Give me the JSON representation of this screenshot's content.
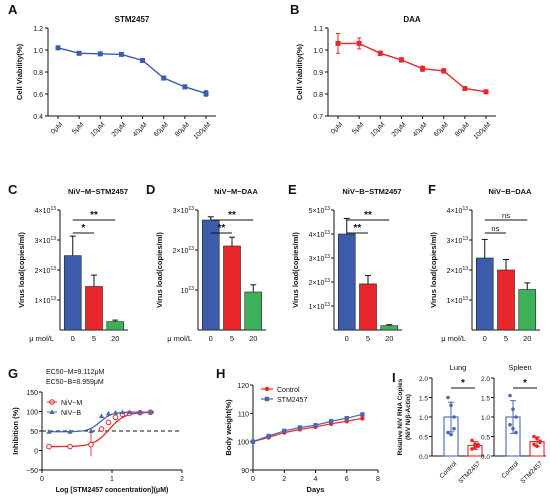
{
  "colors": {
    "blue": "#3b5bab",
    "red": "#e8262c",
    "green": "#3db05a",
    "slate": "#4a67b6",
    "black": "#111111"
  },
  "chart_data": [
    {
      "id": "A",
      "type": "line",
      "panel_letter": "A",
      "title": "STM2457",
      "xlabel": "",
      "ylabel": "Cell Viability(%)",
      "categories": [
        "0μM",
        "5μM",
        "10μM",
        "20μM",
        "40μM",
        "60μM",
        "80μM",
        "100μM"
      ],
      "series": [
        {
          "values": [
            1.02,
            0.97,
            0.965,
            0.96,
            0.905,
            0.745,
            0.665,
            0.605
          ],
          "errors": [
            0.015,
            0.008,
            0.01,
            0.012,
            0.015,
            0.01,
            0.01,
            0.025
          ]
        }
      ],
      "ylim": [
        0.4,
        1.2
      ],
      "yticks": [
        "0.4",
        "0.6",
        "0.8",
        "1.0",
        "1.2"
      ],
      "color": "#3b5bab"
    },
    {
      "id": "B",
      "type": "line",
      "panel_letter": "B",
      "title": "DAA",
      "xlabel": "",
      "ylabel": "Cell Viability(%)",
      "categories": [
        "0μM",
        "5μM",
        "10μM",
        "20μM",
        "40μM",
        "60μM",
        "80μM",
        "100μM"
      ],
      "series": [
        {
          "values": [
            1.03,
            1.03,
            0.985,
            0.955,
            0.915,
            0.905,
            0.825,
            0.81
          ],
          "errors": [
            0.045,
            0.025,
            0.01,
            0.01,
            0.012,
            0.01,
            0.008,
            0.008
          ]
        }
      ],
      "ylim": [
        0.7,
        1.1
      ],
      "yticks": [
        "0.7",
        "0.8",
        "0.9",
        "1.0",
        "1.1"
      ],
      "color": "#e8262c"
    },
    {
      "id": "C",
      "type": "bar",
      "panel_letter": "C",
      "title": "NiV−M−STM2457",
      "ylabel": "Virus load(copies/ml)",
      "xlabel_prefix": "μ mol/L",
      "categories": [
        "0",
        "5",
        "20"
      ],
      "values": [
        24800000000000.0,
        14500000000000.0,
        2800000000000.0
      ],
      "errors": [
        6500000000000.0,
        3800000000000.0,
        500000000000.0
      ],
      "ylim": [
        0,
        40000000000000.0
      ],
      "yticks": [
        {
          "v": 10000000000000.0,
          "base": "1×10",
          "exp": "13"
        },
        {
          "v": 20000000000000.0,
          "base": "2×10",
          "exp": "13"
        },
        {
          "v": 30000000000000.0,
          "base": "3×10",
          "exp": "13"
        },
        {
          "v": 40000000000000.0,
          "base": "4×10",
          "exp": "13"
        }
      ],
      "sig": [
        {
          "from": 0,
          "to": 1,
          "label": "*",
          "level": 0
        },
        {
          "from": 0,
          "to": 2,
          "label": "**",
          "level": 1
        }
      ]
    },
    {
      "id": "D",
      "type": "bar",
      "panel_letter": "D",
      "title": "NiV−M−DAA",
      "ylabel": "Virus load(copies/ml)",
      "xlabel_prefix": "μ mol/L",
      "categories": [
        "0",
        "5",
        "20"
      ],
      "values": [
        27500000000000.0,
        21000000000000.0,
        9500000000000.0
      ],
      "errors": [
        800000000000.0,
        2200000000000.0,
        1800000000000.0
      ],
      "ylim": [
        0,
        30000000000000.0
      ],
      "yticks": [
        {
          "v": 10000000000000.0,
          "base": "10",
          "exp": "13"
        },
        {
          "v": 20000000000000.0,
          "base": "2×10",
          "exp": "13"
        },
        {
          "v": 30000000000000.0,
          "base": "3×10",
          "exp": "13"
        }
      ],
      "sig": [
        {
          "from": 0,
          "to": 1,
          "label": "**",
          "level": 0
        },
        {
          "from": 0,
          "to": 2,
          "label": "**",
          "level": 1
        }
      ]
    },
    {
      "id": "E",
      "type": "bar",
      "panel_letter": "E",
      "title": "NiV−B−STM2457",
      "ylabel": "Virus load(copies/ml)",
      "xlabel_prefix": "",
      "categories": [
        "0",
        "5",
        "20"
      ],
      "values": [
        40000000000000.0,
        19200000000000.0,
        1800000000000.0
      ],
      "errors": [
        6500000000000.0,
        3500000000000.0,
        400000000000.0
      ],
      "ylim": [
        0,
        50000000000000.0
      ],
      "yticks": [
        {
          "v": 10000000000000.0,
          "base": "1×10",
          "exp": "13"
        },
        {
          "v": 20000000000000.0,
          "base": "2×10",
          "exp": "13"
        },
        {
          "v": 30000000000000.0,
          "base": "3×10",
          "exp": "13"
        },
        {
          "v": 40000000000000.0,
          "base": "4×10",
          "exp": "13"
        },
        {
          "v": 50000000000000.0,
          "base": "5×10",
          "exp": "13"
        }
      ],
      "sig": [
        {
          "from": 0,
          "to": 1,
          "label": "**",
          "level": 0
        },
        {
          "from": 0,
          "to": 2,
          "label": "**",
          "level": 1
        }
      ]
    },
    {
      "id": "F",
      "type": "bar",
      "panel_letter": "F",
      "title": "NiV−B−DAA",
      "ylabel": "Virus load(copies/ml)",
      "xlabel_prefix": "μ mol/L",
      "categories": [
        "0",
        "5",
        "20"
      ],
      "values": [
        24000000000000.0,
        20000000000000.0,
        13500000000000.0
      ],
      "errors": [
        6200000000000.0,
        3500000000000.0,
        2200000000000.0
      ],
      "ylim": [
        0,
        40000000000000.0
      ],
      "yticks": [
        {
          "v": 10000000000000.0,
          "base": "1×10",
          "exp": "13"
        },
        {
          "v": 20000000000000.0,
          "base": "2×10",
          "exp": "13"
        },
        {
          "v": 30000000000000.0,
          "base": "3×10",
          "exp": "13"
        },
        {
          "v": 40000000000000.0,
          "base": "4×10",
          "exp": "13"
        }
      ],
      "sig": [
        {
          "from": 0,
          "to": 1,
          "label": "ns",
          "level": 0
        },
        {
          "from": 0,
          "to": 2,
          "label": "ns",
          "level": 1
        }
      ]
    },
    {
      "id": "G",
      "type": "scatter",
      "panel_letter": "G",
      "ylabel": "Inhibition (%)",
      "xlabel": "Log [STM2457 concentration](μM)",
      "annotations": [
        "EC50−M=9.112μM",
        "EC50−B=8.959μM"
      ],
      "xlim": [
        0,
        2
      ],
      "ylim": [
        -50,
        150
      ],
      "xticks": [
        "0",
        "1",
        "2"
      ],
      "yticks": [
        "−50",
        "0",
        "50",
        "100",
        "150"
      ],
      "reference_line_y": 50,
      "legend": [
        "NiV−M",
        "NiV−B"
      ],
      "series": [
        {
          "name": "NiV−M",
          "x": [
            0.1,
            0.4,
            0.7,
            0.85,
            0.95,
            1.05,
            1.15,
            1.25,
            1.4,
            1.55
          ],
          "y": [
            10,
            10,
            15,
            55,
            72,
            85,
            93,
            95,
            97,
            98
          ],
          "errors": [
            2,
            2,
            30,
            8,
            6,
            4,
            3,
            2,
            2,
            2
          ],
          "color": "#e8262c"
        },
        {
          "name": "NiV−B",
          "x": [
            0.1,
            0.4,
            0.7,
            0.85,
            0.95,
            1.05,
            1.15,
            1.25,
            1.4,
            1.55
          ],
          "y": [
            48,
            48,
            50,
            88,
            95,
            97,
            98,
            98,
            98,
            99
          ],
          "errors": [
            3,
            3,
            4,
            4,
            3,
            2,
            2,
            2,
            2,
            2
          ],
          "color": "#4a67b6"
        }
      ]
    },
    {
      "id": "H",
      "type": "line",
      "panel_letter": "H",
      "ylabel": "Body weight(%)",
      "xlabel": "Days",
      "xlim": [
        0,
        8
      ],
      "ylim": [
        90,
        120
      ],
      "xticks": [
        "0",
        "2",
        "4",
        "6",
        "8"
      ],
      "yticks": [
        "90",
        "100",
        "110",
        "120"
      ],
      "legend": [
        "Control",
        "STM2457"
      ],
      "series": [
        {
          "name": "Control",
          "x": [
            0,
            1,
            2,
            3,
            4,
            5,
            6,
            7
          ],
          "y": [
            100,
            101.5,
            103.2,
            104.3,
            105.2,
            106.3,
            107.2,
            108.2
          ],
          "errors": [
            0.4,
            0.5,
            0.6,
            0.6,
            0.6,
            0.7,
            0.7,
            0.7
          ],
          "color": "#e8262c"
        },
        {
          "name": "STM2457",
          "x": [
            0,
            1,
            2,
            3,
            4,
            5,
            6,
            7
          ],
          "y": [
            100,
            102.0,
            103.8,
            105.0,
            105.8,
            107.2,
            108.3,
            109.6
          ],
          "errors": [
            0.4,
            0.5,
            0.5,
            0.6,
            0.6,
            0.7,
            0.7,
            0.8
          ],
          "color": "#4a67b6"
        }
      ]
    },
    {
      "id": "I1",
      "type": "bar",
      "panel_letter": "I",
      "title": "Lung",
      "ylabel": "Relative NiV RNA Copies",
      "ylabel2": "(NiV N/β-Actin)",
      "categories": [
        "Control",
        "STM2457"
      ],
      "values": [
        1.0,
        0.27
      ],
      "errors": [
        0.38,
        0.1
      ],
      "points": [
        [
          1.5,
          1.3,
          1.0,
          0.6,
          0.55,
          0.7
        ],
        [
          0.4,
          0.3,
          0.25,
          0.18,
          0.22,
          0.3
        ]
      ],
      "ylim": [
        0,
        2.0
      ],
      "yticks": [
        "0.0",
        "0.5",
        "1.0",
        "1.5",
        "2.0"
      ],
      "sig": [
        {
          "from": 0,
          "to": 1,
          "label": "*",
          "level": 0
        }
      ]
    },
    {
      "id": "I2",
      "type": "bar",
      "title": "Spleen",
      "categories": [
        "Control",
        "STM2457"
      ],
      "values": [
        1.0,
        0.37
      ],
      "errors": [
        0.42,
        0.12
      ],
      "points": [
        [
          1.55,
          1.2,
          1.0,
          0.8,
          0.7,
          0.6
        ],
        [
          0.5,
          0.45,
          0.35,
          0.3,
          0.25,
          0.38
        ]
      ],
      "ylim": [
        0,
        2.0
      ],
      "yticks": [
        "0.0",
        "0.5",
        "1.0",
        "1.5",
        "2.0"
      ],
      "sig": [
        {
          "from": 0,
          "to": 1,
          "label": "*",
          "level": 0
        }
      ]
    }
  ]
}
